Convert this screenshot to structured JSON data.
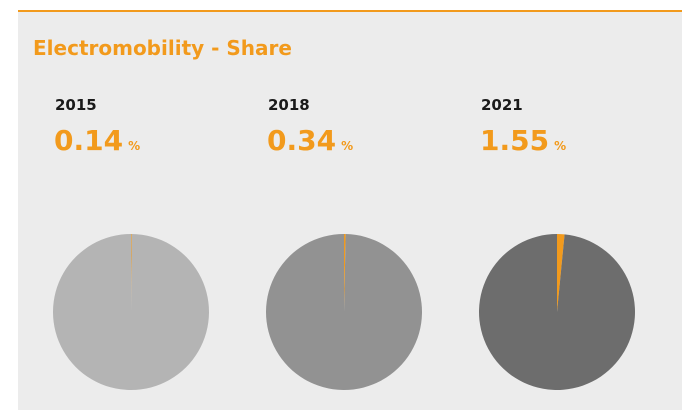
{
  "title": "Electromobility - Share",
  "chart_data": [
    {
      "type": "pie",
      "title": "2015",
      "categories": [
        null,
        null
      ],
      "values": [
        0.14,
        99.86
      ],
      "unit": "%",
      "colors": [
        "#f29a1c",
        "#b4b4b4"
      ]
    },
    {
      "type": "pie",
      "title": "2018",
      "categories": [
        null,
        null
      ],
      "values": [
        0.34,
        99.66
      ],
      "unit": "%",
      "colors": [
        "#f29a1c",
        "#929292"
      ]
    },
    {
      "type": "pie",
      "title": "2021",
      "categories": [
        null,
        null
      ],
      "values": [
        1.55,
        98.45
      ],
      "unit": "%",
      "colors": [
        "#f29a1c",
        "#6d6d6d"
      ]
    }
  ]
}
